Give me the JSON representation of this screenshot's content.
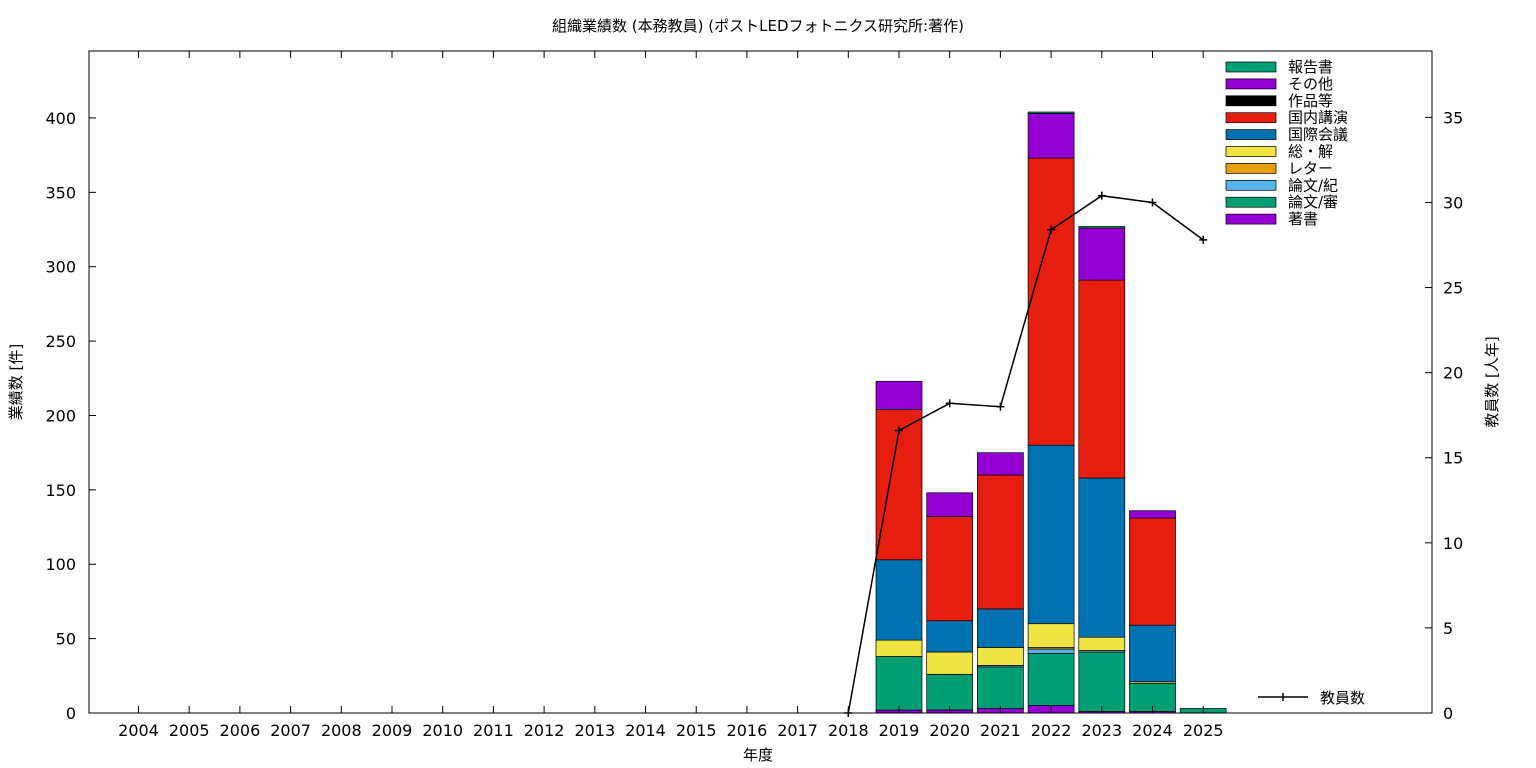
{
  "chart_data": {
    "type": "bar",
    "stacked": true,
    "title": "組織業績数 (本務教員) (ポストLEDフォトニクス研究所:著作)",
    "xlabel": "年度",
    "ylabel": "業績数 [件]",
    "y2label": "教員数 [人年]",
    "ylim": [
      0,
      445
    ],
    "y2lim": [
      0,
      38.9
    ],
    "yticks": [
      0,
      50,
      100,
      150,
      200,
      250,
      300,
      350,
      400
    ],
    "y2ticks": [
      0,
      5,
      10,
      15,
      20,
      25,
      30,
      35
    ],
    "categories": [
      "2004",
      "2005",
      "2006",
      "2007",
      "2008",
      "2009",
      "2010",
      "2011",
      "2012",
      "2013",
      "2014",
      "2015",
      "2016",
      "2017",
      "2018",
      "2019",
      "2020",
      "2021",
      "2022",
      "2023",
      "2024",
      "2025"
    ],
    "legend_position": "top-right",
    "series": [
      {
        "name": "著書",
        "color": "#9400d3",
        "values": [
          0,
          0,
          0,
          0,
          0,
          0,
          0,
          0,
          0,
          0,
          0,
          0,
          0,
          0,
          0,
          2,
          2,
          3,
          5,
          1,
          1,
          0
        ]
      },
      {
        "name": "論文/審",
        "color": "#009e73",
        "values": [
          0,
          0,
          0,
          0,
          0,
          0,
          0,
          0,
          0,
          0,
          0,
          0,
          0,
          0,
          0,
          36,
          24,
          28,
          35,
          40,
          19,
          3
        ]
      },
      {
        "name": "論文/紀",
        "color": "#56b4e9",
        "values": [
          0,
          0,
          0,
          0,
          0,
          0,
          0,
          0,
          0,
          0,
          0,
          0,
          0,
          0,
          0,
          0,
          0,
          1,
          3,
          1,
          0,
          0
        ]
      },
      {
        "name": "レター",
        "color": "#e69f00",
        "values": [
          0,
          0,
          0,
          0,
          0,
          0,
          0,
          0,
          0,
          0,
          0,
          0,
          0,
          0,
          0,
          0,
          0,
          0,
          1,
          0,
          0,
          0
        ]
      },
      {
        "name": "総・解",
        "color": "#f0e442",
        "values": [
          0,
          0,
          0,
          0,
          0,
          0,
          0,
          0,
          0,
          0,
          0,
          0,
          0,
          0,
          0,
          11,
          15,
          12,
          16,
          9,
          1,
          0
        ]
      },
      {
        "name": "国際会議",
        "color": "#0072b2",
        "values": [
          0,
          0,
          0,
          0,
          0,
          0,
          0,
          0,
          0,
          0,
          0,
          0,
          0,
          0,
          0,
          54,
          21,
          26,
          120,
          107,
          38,
          0
        ]
      },
      {
        "name": "国内講演",
        "color": "#e51e10",
        "values": [
          0,
          0,
          0,
          0,
          0,
          0,
          0,
          0,
          0,
          0,
          0,
          0,
          0,
          0,
          0,
          101,
          70,
          90,
          193,
          133,
          72,
          0
        ]
      },
      {
        "name": "作品等",
        "color": "#000000",
        "values": [
          0,
          0,
          0,
          0,
          0,
          0,
          0,
          0,
          0,
          0,
          0,
          0,
          0,
          0,
          0,
          0,
          0,
          0,
          0,
          0,
          0,
          0
        ]
      },
      {
        "name": "その他",
        "color": "#9400d3",
        "values": [
          0,
          0,
          0,
          0,
          0,
          0,
          0,
          0,
          0,
          0,
          0,
          0,
          0,
          0,
          0,
          19,
          16,
          15,
          30,
          35,
          5,
          0
        ]
      },
      {
        "name": "報告書",
        "color": "#009e73",
        "values": [
          0,
          0,
          0,
          0,
          0,
          0,
          0,
          0,
          0,
          0,
          0,
          0,
          0,
          0,
          0,
          0,
          0,
          0,
          1,
          1,
          0,
          0
        ]
      }
    ],
    "line_series": {
      "name": "教員数",
      "color": "#000000",
      "axis": "y2",
      "x": [
        "2018",
        "2019",
        "2020",
        "2021",
        "2022",
        "2023",
        "2024",
        "2025"
      ],
      "values": [
        0,
        16.6,
        18.2,
        18.0,
        28.4,
        30.4,
        30.0,
        27.8
      ]
    }
  }
}
